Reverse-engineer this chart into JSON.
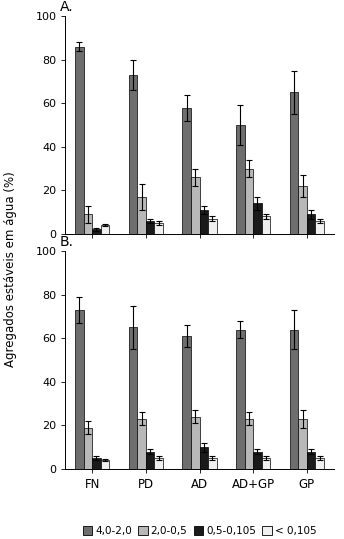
{
  "panel_A": {
    "categories": [
      "FN",
      "PD",
      "AD",
      "AD+GP",
      "GP"
    ],
    "series": {
      "4.0-2.0": {
        "values": [
          86,
          73,
          58,
          50,
          65
        ],
        "errors": [
          2,
          7,
          6,
          9,
          10
        ],
        "color": "#6e6e6e"
      },
      "2.0-0.5": {
        "values": [
          9,
          17,
          26,
          30,
          22
        ],
        "errors": [
          4,
          6,
          4,
          4,
          5
        ],
        "color": "#b8b8b8"
      },
      "0.5-0.105": {
        "values": [
          2,
          6,
          11,
          14,
          9
        ],
        "errors": [
          0.5,
          1,
          2,
          3,
          2
        ],
        "color": "#1a1a1a"
      },
      "< 0.105": {
        "values": [
          4,
          5,
          7,
          8,
          6
        ],
        "errors": [
          0.5,
          1,
          1,
          1,
          1
        ],
        "color": "#f0f0f0"
      }
    }
  },
  "panel_B": {
    "categories": [
      "FN",
      "PD",
      "AD",
      "AD+GP",
      "GP"
    ],
    "series": {
      "4.0-2.0": {
        "values": [
          73,
          65,
          61,
          64,
          64
        ],
        "errors": [
          6,
          10,
          5,
          4,
          9
        ],
        "color": "#6e6e6e"
      },
      "2.0-0.5": {
        "values": [
          19,
          23,
          24,
          23,
          23
        ],
        "errors": [
          3,
          3,
          3,
          3,
          4
        ],
        "color": "#b8b8b8"
      },
      "0.5-0.105": {
        "values": [
          5,
          8,
          10,
          8,
          8
        ],
        "errors": [
          1,
          1,
          2,
          1,
          1
        ],
        "color": "#1a1a1a"
      },
      "< 0.105": {
        "values": [
          4,
          5,
          5,
          5,
          5
        ],
        "errors": [
          0.5,
          1,
          1,
          1,
          1
        ],
        "color": "#f0f0f0"
      }
    }
  },
  "ylabel": "Agregados estáveis em água (%)",
  "ylim": [
    0,
    100
  ],
  "yticks": [
    0,
    20,
    40,
    60,
    80,
    100
  ],
  "legend_labels": [
    "4,0-2,0",
    "2,0-0,5",
    "0,5-0,105",
    "< 0,105"
  ],
  "legend_colors": [
    "#6e6e6e",
    "#b8b8b8",
    "#1a1a1a",
    "#f0f0f0"
  ],
  "panel_labels": [
    "A.",
    "B."
  ],
  "bar_width": 0.16,
  "figsize": [
    3.44,
    5.39
  ],
  "dpi": 100
}
